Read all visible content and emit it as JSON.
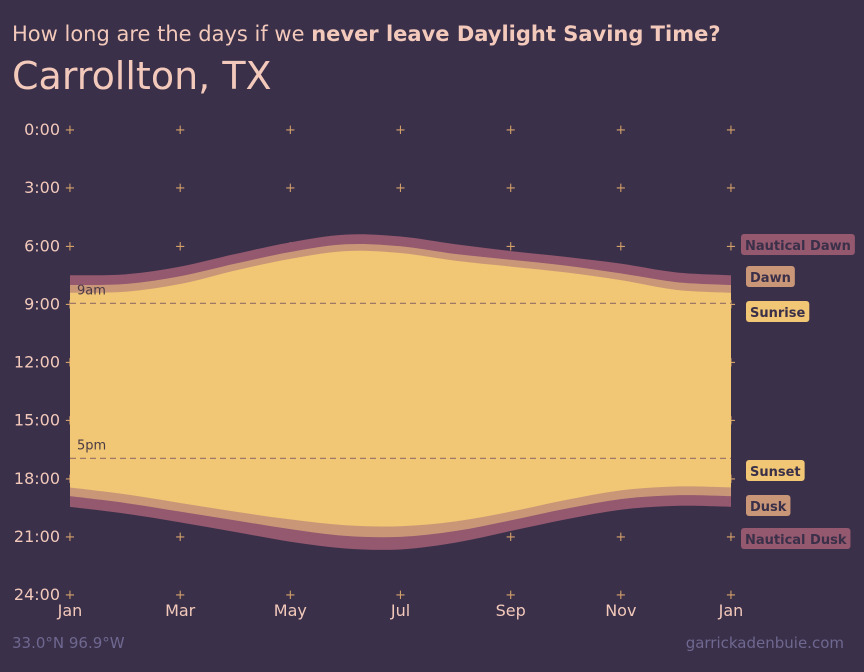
{
  "header": {
    "subtitle_plain": "How long are the days if we ",
    "subtitle_bold": "never leave Daylight Saving Time?",
    "title": "Carrollton, TX"
  },
  "footer": {
    "coordinates": "33.0°N 96.9°W",
    "credit": "garrickadenbuie.com"
  },
  "colors": {
    "background": "#3a3049",
    "day": "#f1c674",
    "civil": "#c99678",
    "nautical": "#94586f",
    "grid_marker": "#d4a06a",
    "label_text_dark": "#3a3049"
  },
  "chart_data": {
    "type": "area",
    "xlim_months": [
      0,
      12
    ],
    "ylim_hours": [
      0,
      24
    ],
    "y_inverted": true,
    "x_ticks": [
      {
        "label": "Jan",
        "month": 0
      },
      {
        "label": "Mar",
        "month": 2
      },
      {
        "label": "May",
        "month": 4
      },
      {
        "label": "Jul",
        "month": 6
      },
      {
        "label": "Sep",
        "month": 8
      },
      {
        "label": "Nov",
        "month": 10
      },
      {
        "label": "Jan",
        "month": 12
      }
    ],
    "y_ticks": [
      {
        "label": "0:00",
        "hour": 0
      },
      {
        "label": "3:00",
        "hour": 3
      },
      {
        "label": "6:00",
        "hour": 6
      },
      {
        "label": "9:00",
        "hour": 9
      },
      {
        "label": "12:00",
        "hour": 12
      },
      {
        "label": "15:00",
        "hour": 15
      },
      {
        "label": "18:00",
        "hour": 18
      },
      {
        "label": "21:00",
        "hour": 21
      },
      {
        "label": "24:00",
        "hour": 24
      }
    ],
    "reference_lines": [
      {
        "label": "9am",
        "hour": 9
      },
      {
        "label": "5pm",
        "hour": 17
      }
    ],
    "months": [
      0,
      1,
      2,
      3,
      4,
      5,
      6,
      7,
      8,
      9,
      10,
      11,
      12
    ],
    "series": [
      {
        "name": "Nautical Dawn",
        "key": "nautical_dawn",
        "values": [
          7.55,
          7.5,
          7.1,
          6.45,
          5.85,
          5.45,
          5.55,
          5.95,
          6.3,
          6.6,
          6.95,
          7.4,
          7.55
        ]
      },
      {
        "name": "Dawn",
        "key": "dawn",
        "values": [
          8.05,
          8.0,
          7.6,
          6.95,
          6.35,
          5.95,
          6.05,
          6.45,
          6.75,
          7.05,
          7.45,
          7.9,
          8.05
        ]
      },
      {
        "name": "Sunrise",
        "key": "sunrise",
        "values": [
          8.45,
          8.4,
          8.0,
          7.3,
          6.7,
          6.3,
          6.4,
          6.8,
          7.1,
          7.4,
          7.8,
          8.3,
          8.45
        ]
      },
      {
        "name": "Sunset",
        "key": "sunset",
        "values": [
          18.5,
          18.85,
          19.3,
          19.75,
          20.15,
          20.45,
          20.5,
          20.25,
          19.75,
          19.15,
          18.65,
          18.45,
          18.5
        ]
      },
      {
        "name": "Dusk",
        "key": "dusk",
        "values": [
          18.95,
          19.3,
          19.75,
          20.2,
          20.65,
          21.0,
          21.05,
          20.75,
          20.2,
          19.6,
          19.1,
          18.9,
          18.95
        ]
      },
      {
        "name": "Nautical Dusk",
        "key": "nautical_dusk",
        "values": [
          19.5,
          19.85,
          20.3,
          20.8,
          21.3,
          21.65,
          21.7,
          21.35,
          20.75,
          20.15,
          19.65,
          19.45,
          19.5
        ]
      }
    ]
  }
}
